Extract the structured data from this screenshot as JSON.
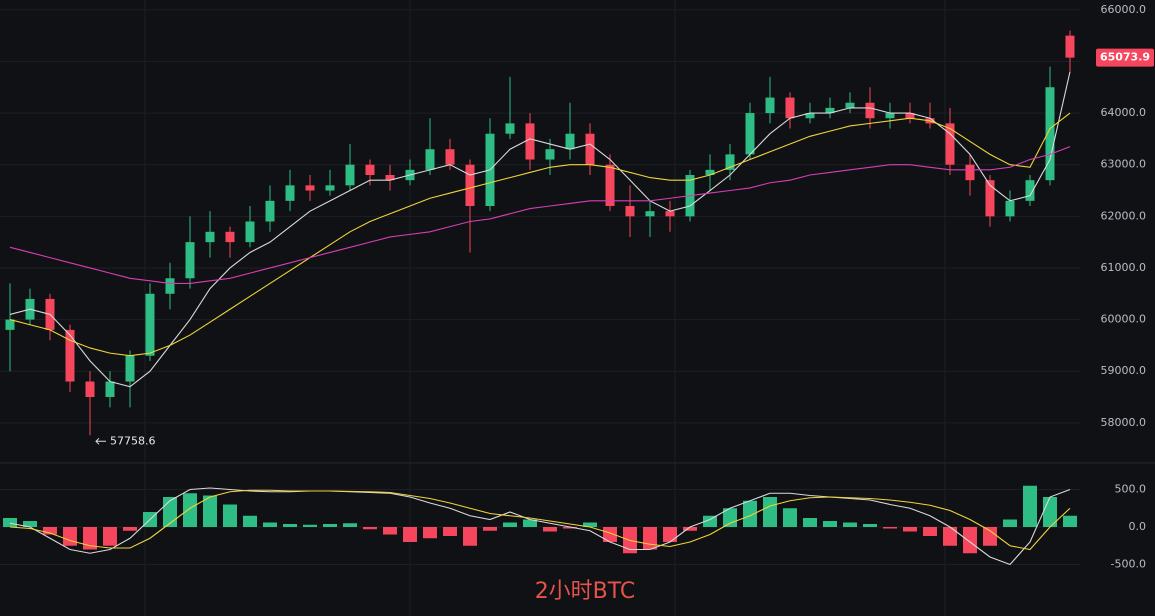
{
  "chart_data": [
    {
      "type": "candlestick",
      "title": "2小时BTC",
      "up_color": "#2ebd85",
      "down_color": "#f6465d",
      "grid": true,
      "ylim": [
        57280,
        66190
      ],
      "yticks": [
        {
          "value": 58000,
          "label": "58000.0"
        },
        {
          "value": 59000,
          "label": "59000.0"
        },
        {
          "value": 60000,
          "label": "60000.0"
        },
        {
          "value": 61000,
          "label": "61000.0"
        },
        {
          "value": 62000,
          "label": "62000.0"
        },
        {
          "value": 63000,
          "label": "63000.0"
        },
        {
          "value": 64000,
          "label": "64000.0"
        },
        {
          "value": 65000,
          "label": "65000.0"
        },
        {
          "value": 66000,
          "label": "66000.0"
        }
      ],
      "candles": {
        "open": [
          59800,
          60000,
          60400,
          59800,
          58800,
          58500,
          58800,
          59300,
          60500,
          60800,
          61500,
          61700,
          61500,
          61900,
          62300,
          62600,
          62500,
          62600,
          63000,
          62800,
          62700,
          62900,
          63300,
          63000,
          62200,
          63600,
          63800,
          63100,
          63300,
          63600,
          63000,
          62200,
          62000,
          62100,
          62000,
          62800,
          62900,
          63200,
          64000,
          64300,
          63900,
          64000,
          64100,
          64200,
          63900,
          64000,
          63900,
          63800,
          63000,
          62700,
          62000,
          62300,
          62700,
          65500
        ],
        "high": [
          60700,
          60600,
          60500,
          59900,
          59000,
          59000,
          59400,
          60700,
          61100,
          62000,
          62100,
          61800,
          62200,
          62600,
          62900,
          62800,
          62900,
          63400,
          63100,
          63000,
          63100,
          63900,
          63500,
          63100,
          63900,
          64700,
          64000,
          63500,
          64200,
          63800,
          63200,
          62600,
          62300,
          62300,
          62900,
          63200,
          63400,
          64200,
          64700,
          64400,
          64200,
          64300,
          64400,
          64500,
          64200,
          64200,
          64200,
          64100,
          63200,
          62800,
          62500,
          62800,
          64900,
          65600
        ],
        "low": [
          59000,
          59900,
          59600,
          58600,
          57758.6,
          58300,
          58300,
          59200,
          60200,
          60600,
          61200,
          61200,
          61400,
          61700,
          62100,
          62300,
          62400,
          62500,
          62600,
          62500,
          62600,
          62800,
          62900,
          61300,
          62100,
          63500,
          62900,
          62800,
          63100,
          62800,
          62100,
          61600,
          61600,
          61700,
          61900,
          62500,
          62700,
          63100,
          63800,
          63700,
          63800,
          63900,
          64000,
          63700,
          63700,
          63800,
          63700,
          62800,
          62400,
          61800,
          61900,
          62200,
          62600,
          64800
        ],
        "close": [
          60000,
          60400,
          59800,
          58800,
          58500,
          58800,
          59300,
          60500,
          60800,
          61500,
          61700,
          61500,
          61900,
          62300,
          62600,
          62500,
          62600,
          63000,
          62800,
          62700,
          62900,
          63300,
          63000,
          62200,
          63600,
          63800,
          63100,
          63300,
          63600,
          63000,
          62200,
          62000,
          62100,
          62000,
          62800,
          62900,
          63200,
          64000,
          64300,
          63900,
          64000,
          64100,
          64200,
          63900,
          64000,
          63900,
          63800,
          63000,
          62700,
          62000,
          62300,
          62700,
          64500,
          65073.9
        ]
      },
      "series": [
        {
          "color": "#d9d9d9",
          "values": [
            60100,
            60200,
            60100,
            59700,
            59200,
            58800,
            58700,
            59000,
            59500,
            60000,
            60600,
            61000,
            61300,
            61500,
            61800,
            62100,
            62300,
            62500,
            62700,
            62700,
            62800,
            62900,
            63000,
            62800,
            62900,
            63300,
            63500,
            63400,
            63300,
            63400,
            63100,
            62700,
            62300,
            62100,
            62200,
            62500,
            62800,
            63200,
            63600,
            63900,
            64000,
            64000,
            64100,
            64100,
            64000,
            64000,
            63900,
            63600,
            63200,
            62600,
            62300,
            62400,
            63100,
            64800
          ]
        },
        {
          "color": "#f0d43a",
          "values": [
            60000,
            59900,
            59800,
            59600,
            59450,
            59350,
            59300,
            59350,
            59500,
            59700,
            59950,
            60200,
            60450,
            60700,
            60950,
            61200,
            61450,
            61700,
            61900,
            62050,
            62200,
            62350,
            62450,
            62550,
            62650,
            62750,
            62850,
            62950,
            63000,
            63000,
            62950,
            62850,
            62750,
            62700,
            62700,
            62800,
            62950,
            63100,
            63250,
            63400,
            63550,
            63650,
            63750,
            63800,
            63850,
            63900,
            63850,
            63700,
            63450,
            63200,
            63000,
            62950,
            63700,
            64000
          ]
        },
        {
          "color": "#d63fb4",
          "values": [
            61400,
            61300,
            61200,
            61100,
            61000,
            60900,
            60800,
            60750,
            60700,
            60700,
            60750,
            60800,
            60900,
            61000,
            61100,
            61200,
            61300,
            61400,
            61500,
            61600,
            61650,
            61700,
            61800,
            61900,
            61950,
            62050,
            62150,
            62200,
            62250,
            62300,
            62300,
            62300,
            62300,
            62350,
            62400,
            62450,
            62500,
            62550,
            62650,
            62700,
            62800,
            62850,
            62900,
            62950,
            63000,
            63000,
            62950,
            62900,
            62900,
            62900,
            62950,
            63100,
            63200,
            63350
          ]
        }
      ]
    },
    {
      "type": "bar",
      "up_color": "#2ebd85",
      "down_color": "#f6465d",
      "grid": true,
      "ylim": [
        -1000,
        800
      ],
      "yticks": [
        {
          "value": -500,
          "label": "-500.0"
        },
        {
          "value": 0,
          "label": "0.0"
        },
        {
          "value": 500,
          "label": "500.0"
        }
      ],
      "values": [
        120,
        80,
        -100,
        -250,
        -300,
        -250,
        -50,
        200,
        400,
        450,
        420,
        300,
        150,
        60,
        40,
        30,
        40,
        50,
        -30,
        -100,
        -200,
        -150,
        -120,
        -250,
        -50,
        60,
        100,
        -60,
        -20,
        60,
        -200,
        -350,
        -300,
        -200,
        -50,
        150,
        250,
        350,
        400,
        250,
        120,
        80,
        60,
        40,
        -20,
        -60,
        -120,
        -250,
        -350,
        -250,
        100,
        550,
        400,
        150
      ],
      "series": [
        {
          "color": "#d9d9d9",
          "values": [
            50,
            0,
            -150,
            -300,
            -350,
            -300,
            -150,
            100,
            350,
            500,
            520,
            500,
            480,
            470,
            470,
            480,
            480,
            470,
            460,
            450,
            400,
            320,
            250,
            150,
            100,
            200,
            100,
            50,
            0,
            -50,
            -200,
            -300,
            -300,
            -200,
            0,
            100,
            250,
            350,
            450,
            450,
            420,
            400,
            380,
            360,
            300,
            250,
            150,
            0,
            -200,
            -400,
            -500,
            -200,
            400,
            500
          ]
        },
        {
          "color": "#f0d43a",
          "values": [
            0,
            -20,
            -80,
            -180,
            -250,
            -280,
            -280,
            -150,
            50,
            250,
            400,
            470,
            490,
            490,
            480,
            480,
            480,
            475,
            470,
            460,
            420,
            380,
            320,
            250,
            180,
            150,
            120,
            80,
            40,
            0,
            -80,
            -180,
            -230,
            -260,
            -200,
            -100,
            50,
            150,
            280,
            350,
            390,
            400,
            390,
            380,
            360,
            330,
            290,
            220,
            100,
            -50,
            -250,
            -300,
            0,
            250
          ]
        }
      ]
    }
  ]
}
